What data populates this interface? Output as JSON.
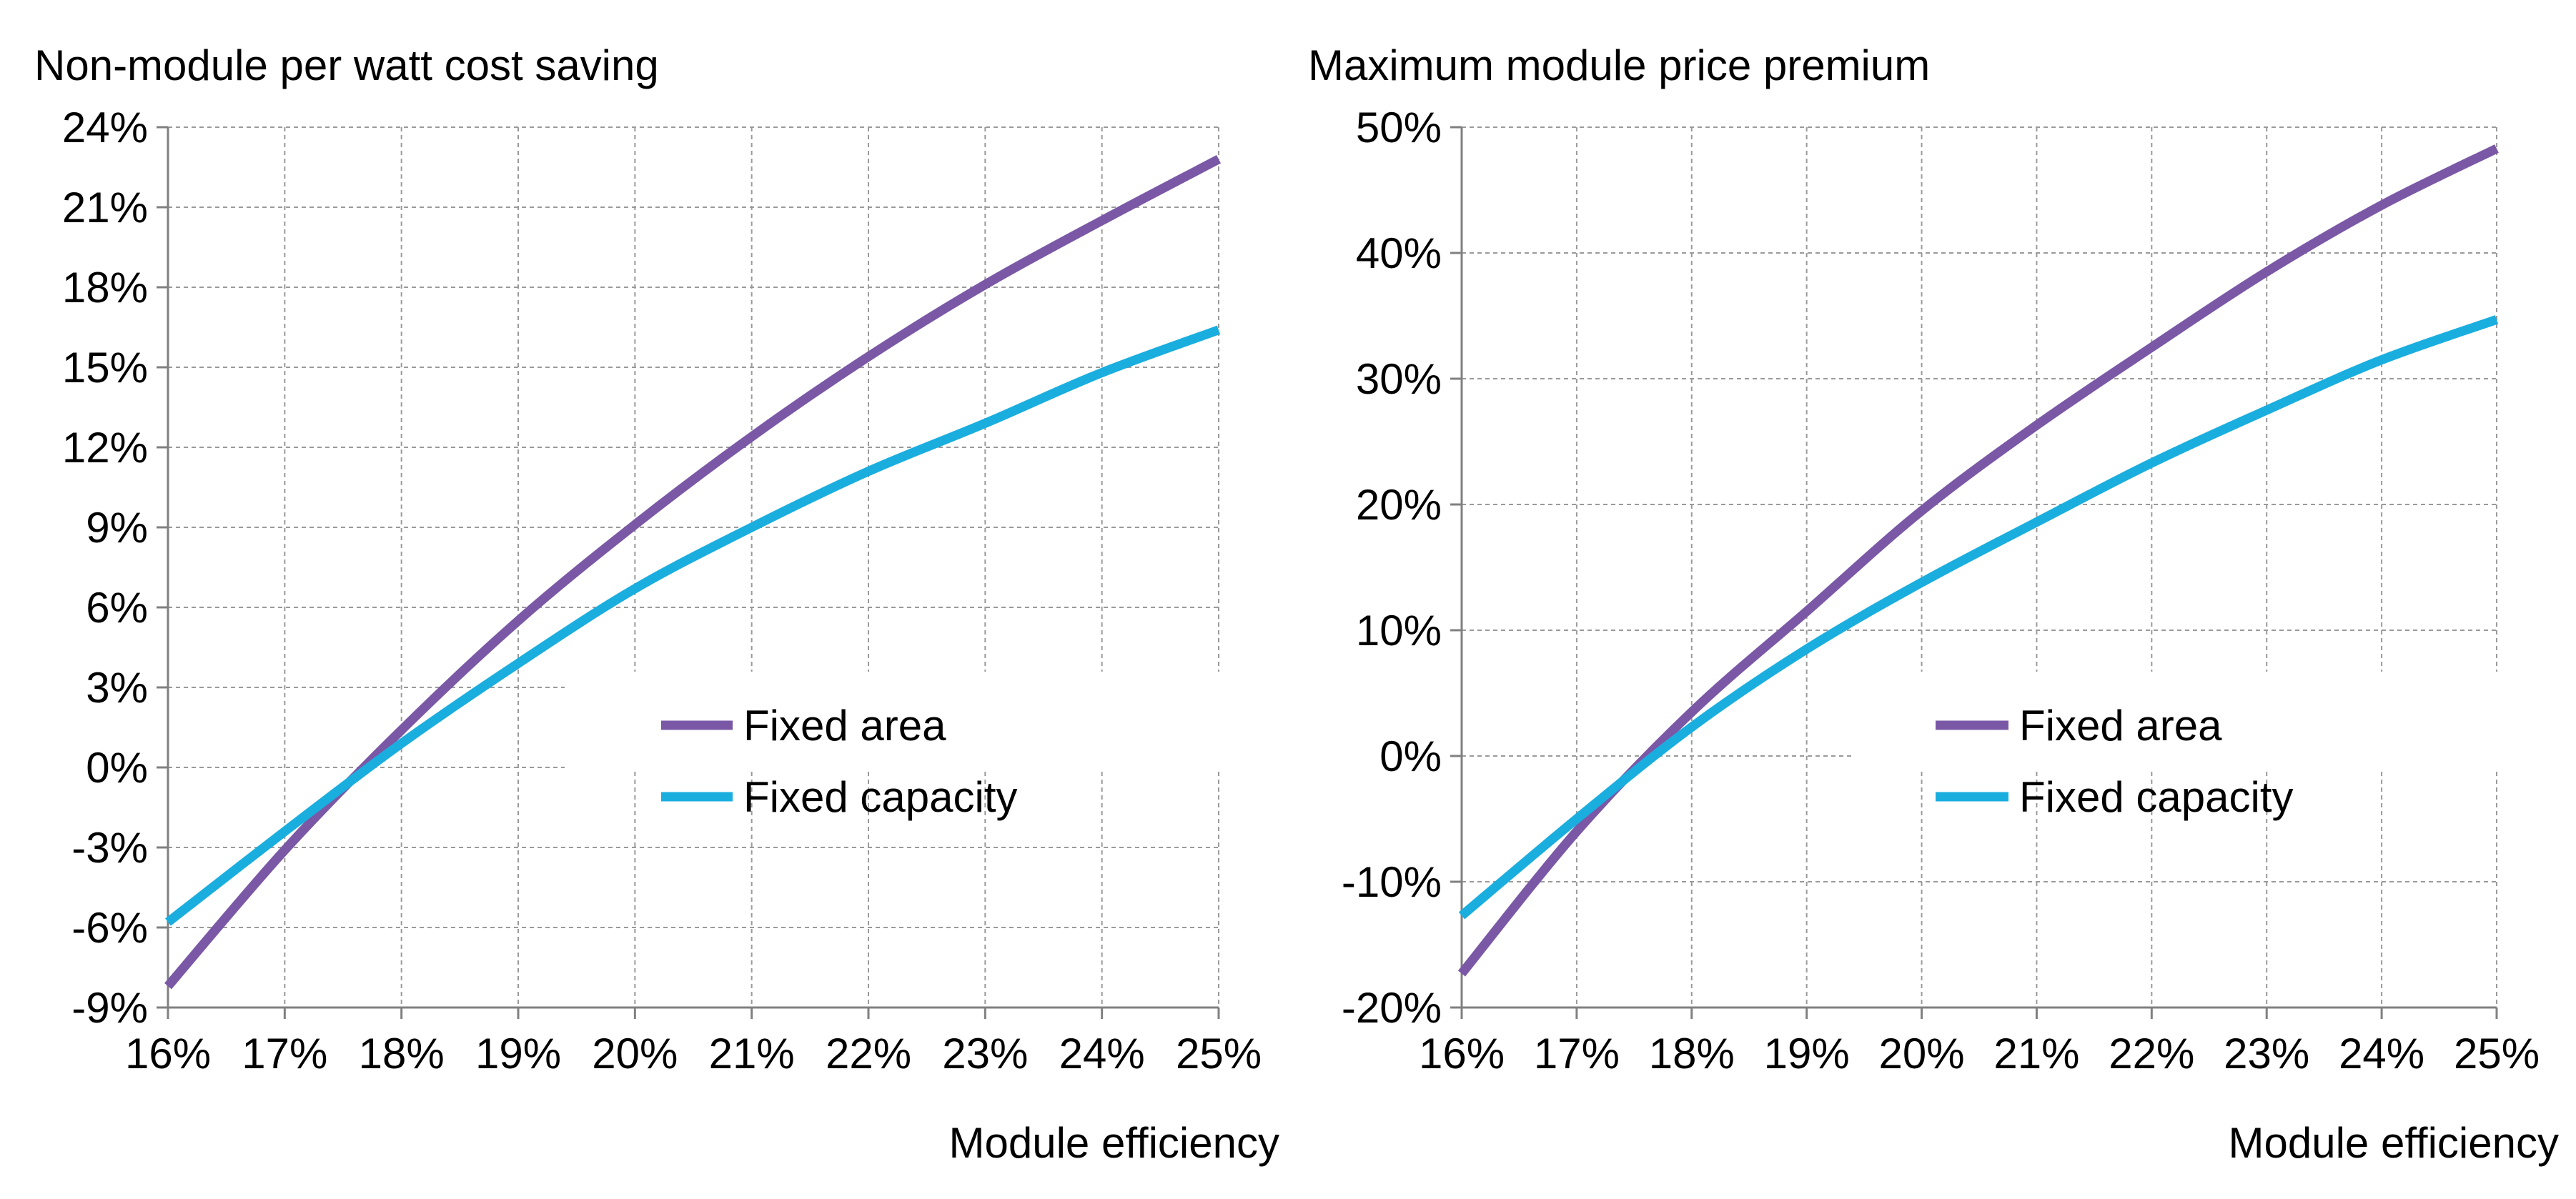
{
  "chart_data": [
    {
      "type": "line",
      "title": "Non-module per watt cost saving",
      "xlabel": "Module efficiency",
      "ylabel": "",
      "xlim": [
        16,
        25
      ],
      "ylim": [
        -9,
        24
      ],
      "x_ticks": [
        "16%",
        "17%",
        "18%",
        "19%",
        "20%",
        "21%",
        "22%",
        "23%",
        "24%",
        "25%"
      ],
      "y_ticks": [
        "-9%",
        "-6%",
        "-3%",
        "0%",
        "3%",
        "6%",
        "9%",
        "12%",
        "15%",
        "18%",
        "21%",
        "24%"
      ],
      "grid": true,
      "legend_position": "center-right",
      "x": [
        16,
        17,
        18,
        19,
        20,
        21,
        22,
        23,
        24,
        25
      ],
      "series": [
        {
          "name": "Fixed area",
          "color": "#7a58a6",
          "values": [
            -8.2,
            -3.1,
            1.4,
            5.5,
            9.1,
            12.4,
            15.4,
            18.1,
            20.5,
            22.8
          ]
        },
        {
          "name": "Fixed capacity",
          "color": "#1aaedf",
          "values": [
            -5.8,
            -2.4,
            0.9,
            3.9,
            6.7,
            9.0,
            11.1,
            12.9,
            14.8,
            16.4
          ]
        }
      ]
    },
    {
      "type": "line",
      "title": "Maximum module price premium",
      "xlabel": "Module efficiency",
      "ylabel": "",
      "xlim": [
        16,
        25
      ],
      "ylim": [
        -20,
        50
      ],
      "x_ticks": [
        "16%",
        "17%",
        "18%",
        "19%",
        "20%",
        "21%",
        "22%",
        "23%",
        "24%",
        "25%"
      ],
      "y_ticks": [
        "-20%",
        "-10%",
        "0%",
        "10%",
        "20%",
        "30%",
        "40%",
        "50%"
      ],
      "grid": true,
      "legend_position": "center-right",
      "x": [
        16,
        17,
        18,
        19,
        20,
        21,
        22,
        23,
        24,
        25
      ],
      "series": [
        {
          "name": "Fixed area",
          "color": "#7a58a6",
          "values": [
            -17.3,
            -6.0,
            3.5,
            11.5,
            19.5,
            26.3,
            32.5,
            38.5,
            43.8,
            48.3
          ]
        },
        {
          "name": "Fixed capacity",
          "color": "#1aaedf",
          "values": [
            -12.7,
            -5.0,
            2.3,
            8.5,
            13.8,
            18.6,
            23.3,
            27.5,
            31.5,
            34.7
          ]
        }
      ]
    }
  ]
}
